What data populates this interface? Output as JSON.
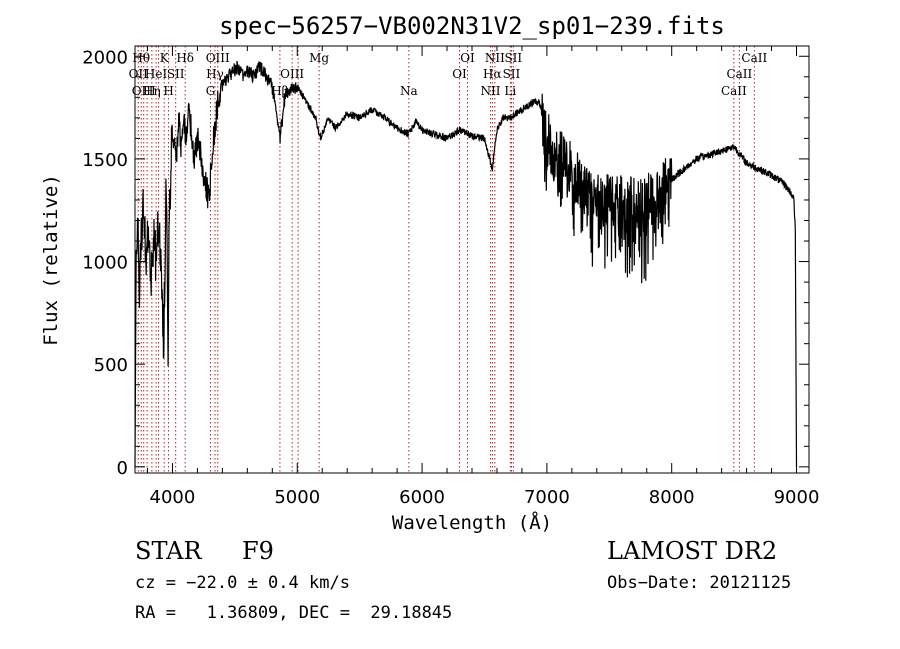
{
  "chart_data": {
    "type": "line",
    "title": "spec−56257−VB002N31V2_sp01−239.fits",
    "xlabel": "Wavelength (Å)",
    "ylabel": "Flux (relative)",
    "xlim": [
      3700,
      9100
    ],
    "ylim": [
      -30,
      2050
    ],
    "xticks": [
      4000,
      5000,
      6000,
      7000,
      8000,
      9000
    ],
    "yticks": [
      0,
      500,
      1000,
      1500,
      2000
    ],
    "xtick_labels": [
      "4000",
      "5000",
      "6000",
      "7000",
      "8000",
      "9000"
    ],
    "ytick_labels": [
      "0",
      "500",
      "1000",
      "1500",
      "2000"
    ],
    "grid": false,
    "series": [
      {
        "noise": true,
        "x": [
          3700,
          3710,
          3722,
          3735,
          3750,
          3770,
          3790,
          3810,
          3830,
          3850,
          3870,
          3890,
          3910,
          3930,
          3950,
          3965,
          3975,
          3990,
          4010,
          4030,
          4050,
          4070,
          4090,
          4110,
          4130,
          4150,
          4170,
          4200,
          4230,
          4260,
          4290,
          4310,
          4330,
          4350,
          4370,
          4400,
          4440,
          4480,
          4520,
          4560,
          4600,
          4650,
          4700,
          4750,
          4800,
          4861,
          4900,
          4950,
          5000,
          5050,
          5100,
          5150,
          5183,
          5250,
          5300,
          5400,
          5500,
          5600,
          5700,
          5800,
          5890,
          5950,
          6000,
          6100,
          6200,
          6300,
          6400,
          6500,
          6563,
          6600,
          6650,
          6700,
          6750,
          6800,
          6850,
          6900,
          6950,
          6960,
          7000,
          7100,
          7200,
          7300,
          7400,
          7500,
          7600,
          7700,
          7750,
          7800,
          7900,
          8000,
          8100,
          8200,
          8300,
          8400,
          8500,
          8600,
          8700,
          8800,
          8900,
          8960,
          8980,
          8990,
          9000
        ],
        "y": [
          0,
          1100,
          1250,
          900,
          1100,
          1300,
          1000,
          1150,
          900,
          1100,
          1000,
          1200,
          900,
          600,
          1400,
          600,
          1200,
          1550,
          1600,
          1500,
          1700,
          1550,
          1700,
          1600,
          1750,
          1650,
          1500,
          1600,
          1500,
          1400,
          1300,
          1450,
          1600,
          1700,
          1800,
          1850,
          1900,
          1920,
          1950,
          1900,
          1930,
          1900,
          1950,
          1900,
          1850,
          1600,
          1800,
          1850,
          1850,
          1800,
          1750,
          1700,
          1600,
          1700,
          1650,
          1720,
          1700,
          1740,
          1700,
          1650,
          1620,
          1680,
          1640,
          1620,
          1600,
          1640,
          1610,
          1600,
          1450,
          1640,
          1700,
          1700,
          1720,
          1740,
          1760,
          1780,
          1770,
          1700,
          1600,
          1520,
          1450,
          1350,
          1300,
          1300,
          1300,
          1280,
          1280,
          1300,
          1350,
          1400,
          1450,
          1500,
          1520,
          1540,
          1560,
          1480,
          1450,
          1420,
          1380,
          1330,
          1300,
          1150,
          0
        ]
      }
    ],
    "lines": [
      {
        "x": 3726,
        "row": 1,
        "label": "OII"
      },
      {
        "x": 3750,
        "row": 0,
        "label": "Hθ"
      },
      {
        "x": 3770,
        "row": 2,
        "label": "OIII"
      },
      {
        "x": 3797,
        "row": 0,
        "label": ""
      },
      {
        "x": 3835,
        "row": 2,
        "label": "Hη"
      },
      {
        "x": 3869,
        "row": 1,
        "label": "HeI"
      },
      {
        "x": 3889,
        "row": 2,
        "label": ""
      },
      {
        "x": 3934,
        "row": 0,
        "label": "K"
      },
      {
        "x": 3969,
        "row": 2,
        "label": "H"
      },
      {
        "x": 4026,
        "row": 1,
        "label": "SII"
      },
      {
        "x": 4102,
        "row": 0,
        "label": "Hδ"
      },
      {
        "x": 4305,
        "row": 2,
        "label": "G"
      },
      {
        "x": 4341,
        "row": 1,
        "label": "Hγ"
      },
      {
        "x": 4363,
        "row": 0,
        "label": "OIII"
      },
      {
        "x": 4861,
        "row": 2,
        "label": "Hβ"
      },
      {
        "x": 4959,
        "row": 1,
        "label": "OIII"
      },
      {
        "x": 5007,
        "row": 2,
        "label": ""
      },
      {
        "x": 5175,
        "row": 0,
        "label": "Mg"
      },
      {
        "x": 5894,
        "row": 2,
        "label": "Na"
      },
      {
        "x": 6300,
        "row": 1,
        "label": "OI"
      },
      {
        "x": 6364,
        "row": 0,
        "label": "OI"
      },
      {
        "x": 6548,
        "row": 2,
        "label": "NII"
      },
      {
        "x": 6563,
        "row": 1,
        "label": "Hα"
      },
      {
        "x": 6583,
        "row": 0,
        "label": "NII"
      },
      {
        "x": 6707,
        "row": 2,
        "label": "Li"
      },
      {
        "x": 6716,
        "row": 1,
        "label": "SII"
      },
      {
        "x": 6731,
        "row": 0,
        "label": "SII"
      },
      {
        "x": 8498,
        "row": 2,
        "label": "CaII"
      },
      {
        "x": 8542,
        "row": 1,
        "label": "CaII"
      },
      {
        "x": 8662,
        "row": 0,
        "label": "CaII"
      }
    ]
  },
  "info": {
    "object_class": "STAR",
    "subclass": "F9",
    "survey": "LAMOST DR2",
    "redshift": "cz = −22.0 ± 0.4 km/s",
    "obs_date": "Obs−Date: 20121125",
    "coords": "RA =   1.36809, DEC =  29.18845"
  },
  "colors": {
    "spectrum": "#000000",
    "line_markers": "#b22222",
    "background": "#ffffff"
  }
}
